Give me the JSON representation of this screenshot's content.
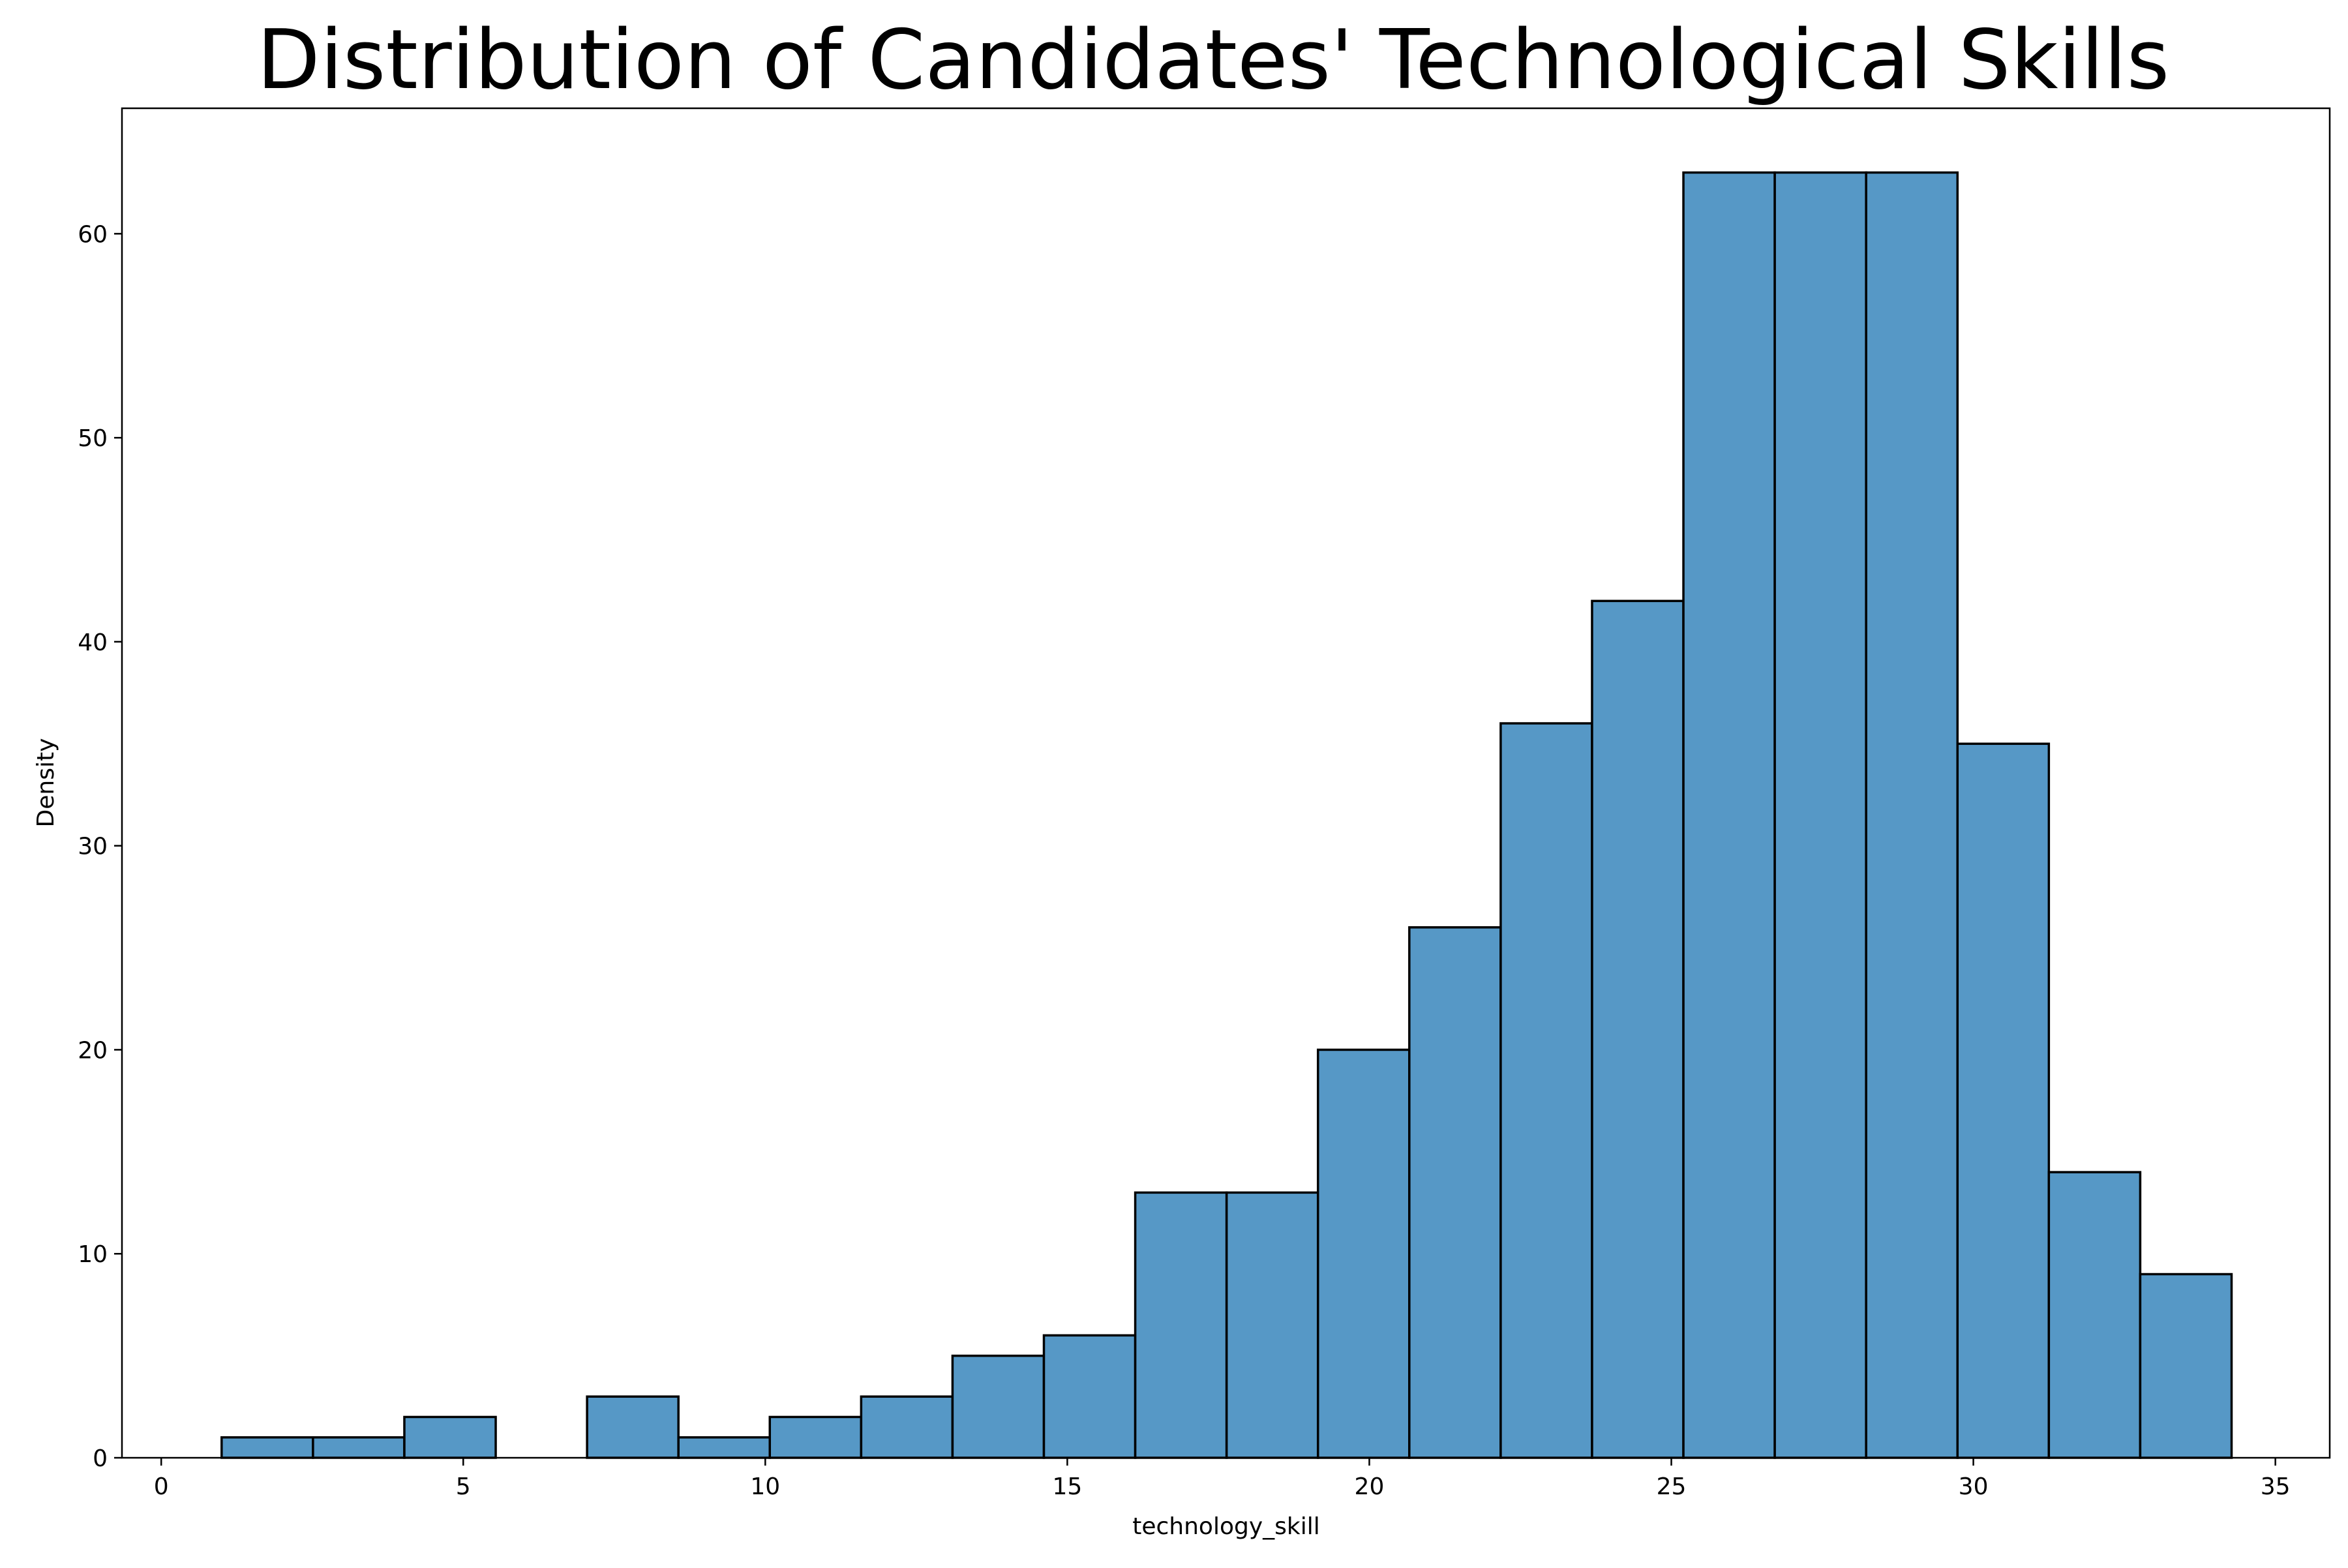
{
  "chart_data": {
    "type": "bar",
    "title": "Distribution of Candidates' Technological Skills",
    "xlabel": "technology_skill",
    "ylabel": "Density",
    "xlim": [
      -0.65,
      35.9
    ],
    "ylim": [
      0,
      66.15
    ],
    "xticks": [
      0,
      5,
      10,
      15,
      20,
      25,
      30,
      35
    ],
    "yticks": [
      0,
      10,
      20,
      30,
      40,
      50,
      60
    ],
    "bin_start": 1.0,
    "bin_width": 1.5125,
    "values": [
      1,
      1,
      2,
      0,
      3,
      1,
      2,
      3,
      5,
      6,
      13,
      13,
      20,
      26,
      36,
      42,
      63,
      63,
      63,
      35,
      14,
      9
    ],
    "bar_color": "#5698c6",
    "edge_color": "#000000",
    "grid": false,
    "legend": "none"
  }
}
